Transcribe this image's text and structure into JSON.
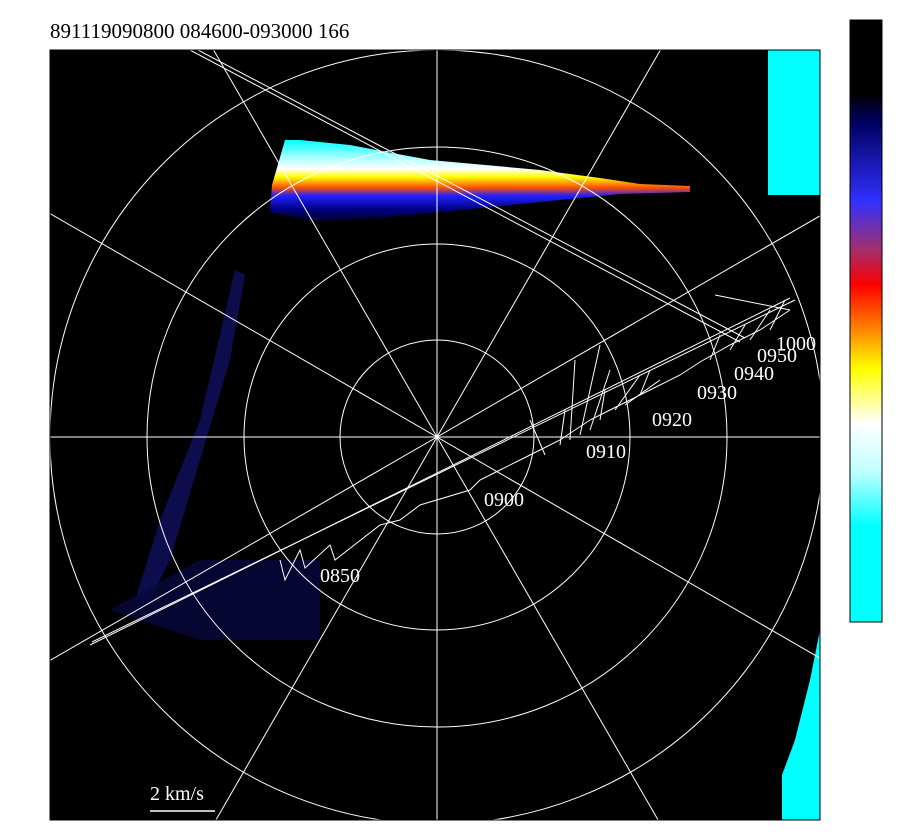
{
  "title": "891119090800 084600-093000 166",
  "time_labels": [
    "0850",
    "0900",
    "0910",
    "0920",
    "0930",
    "0940",
    "0950",
    "1000"
  ],
  "scale_label": "2 km/s"
}
